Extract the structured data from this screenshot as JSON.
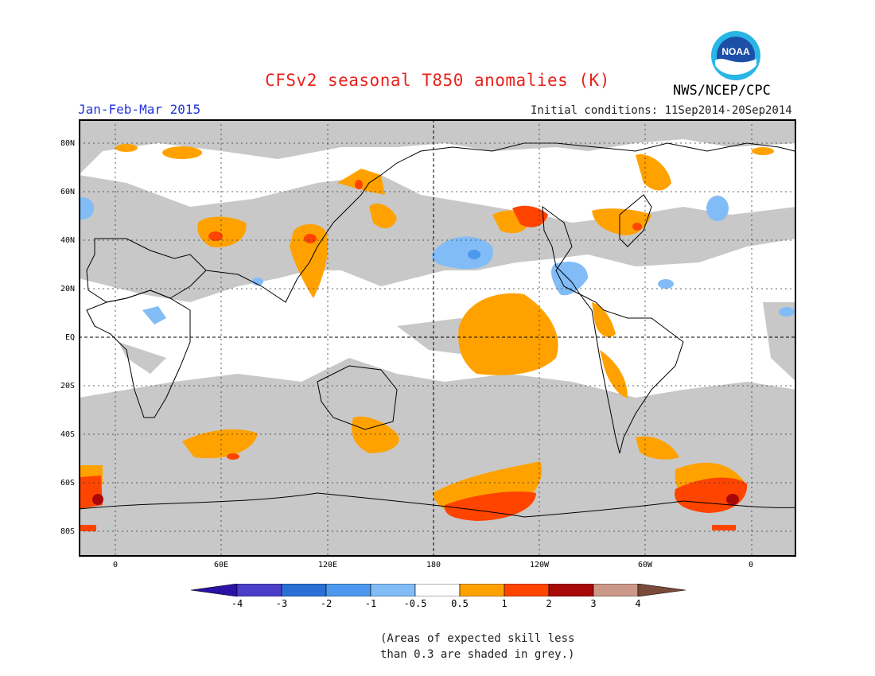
{
  "title": "CFSv2 seasonal T850 anomalies (K)",
  "agency": "NWS/NCEP/CPC",
  "season": "Jan-Feb-Mar 2015",
  "initial_conditions": "Initial conditions: 11Sep2014-20Sep2014",
  "logo_text": "NOAA",
  "lat_labels": [
    "80N",
    "60N",
    "40N",
    "20N",
    "EQ",
    "20S",
    "40S",
    "60S",
    "80S"
  ],
  "lon_labels": [
    "0",
    "60E",
    "120E",
    "180",
    "120W",
    "60W",
    "0"
  ],
  "colorbar": {
    "labels": [
      "-4",
      "-3",
      "-2",
      "-1",
      "-0.5",
      "0.5",
      "1",
      "2",
      "3",
      "4"
    ],
    "colors": [
      "#2a12a6",
      "#4a3ec8",
      "#2a6fd6",
      "#4b98ee",
      "#82bcf6",
      "#ffffff",
      "#ffa200",
      "#ff4400",
      "#a80808",
      "#cc9988",
      "#7a4a3a"
    ]
  },
  "colors": {
    "grey_skill": "#c8c8c8",
    "orange": "#ffa200",
    "red": "#ff4400",
    "darkred": "#a80808",
    "lightblue": "#82bcf6",
    "blue": "#4b98ee"
  },
  "note_line1": "(Areas of expected skill less",
  "note_line2": "than 0.3 are shaded in grey.)"
}
